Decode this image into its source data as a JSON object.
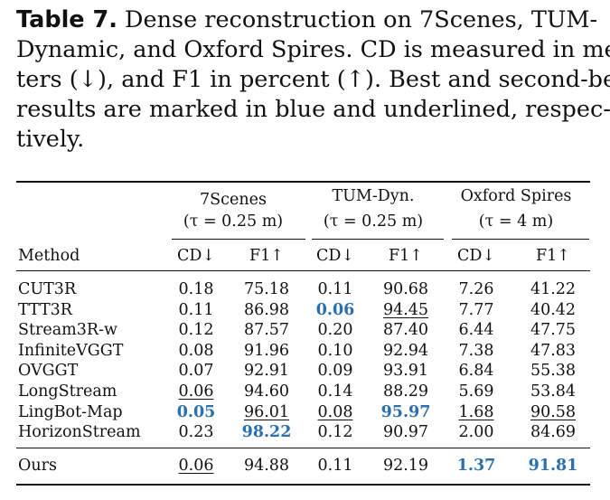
{
  "caption": {
    "label": "Table 7.",
    "lines": [
      " Dense reconstruction on 7Scenes, TUM-",
      "Dynamic, and Oxford Spires. CD is measured in me-",
      "ters (↓), and F1 in percent (↑). Best and second-best",
      "results are marked in blue and underlined, respec-",
      "tively."
    ]
  },
  "groups": [
    {
      "name": "7Scenes",
      "param": "(τ = 0.25 m)"
    },
    {
      "name": "TUM-Dyn.",
      "param": "(τ = 0.25 m)"
    },
    {
      "name": "Oxford Spires",
      "param": "(τ = 4 m)"
    }
  ],
  "columns": {
    "method": "Method",
    "cd": "CD↓",
    "f1": "F1↑"
  },
  "rows": [
    {
      "method": "CUT3R",
      "values": [
        "0.18",
        "75.18",
        "0.11",
        "90.68",
        "7.26",
        "41.22"
      ],
      "best": [],
      "second": []
    },
    {
      "method": "TTT3R",
      "values": [
        "0.11",
        "86.98",
        "0.06",
        "94.45",
        "7.77",
        "40.42"
      ],
      "best": [
        2
      ],
      "second": [
        3
      ]
    },
    {
      "method": "Stream3R-w",
      "values": [
        "0.12",
        "87.57",
        "0.20",
        "87.40",
        "6.44",
        "47.75"
      ],
      "best": [],
      "second": []
    },
    {
      "method": "InfiniteVGGT",
      "values": [
        "0.08",
        "91.96",
        "0.10",
        "92.94",
        "7.38",
        "47.83"
      ],
      "best": [],
      "second": []
    },
    {
      "method": "OVGGT",
      "values": [
        "0.07",
        "92.91",
        "0.09",
        "93.91",
        "6.84",
        "55.38"
      ],
      "best": [],
      "second": []
    },
    {
      "method": "LongStream",
      "values": [
        "0.06",
        "94.60",
        "0.14",
        "88.29",
        "5.69",
        "53.84"
      ],
      "best": [],
      "second": [
        0
      ]
    },
    {
      "method": "LingBot-Map",
      "values": [
        "0.05",
        "96.01",
        "0.08",
        "95.97",
        "1.68",
        "90.58"
      ],
      "best": [
        0,
        3
      ],
      "second": [
        1,
        2,
        4,
        5
      ]
    },
    {
      "method": "HorizonStream",
      "values": [
        "0.23",
        "98.22",
        "0.12",
        "90.97",
        "2.00",
        "84.69"
      ],
      "best": [
        1
      ],
      "second": []
    }
  ],
  "ours": {
    "method": "Ours",
    "values": [
      "0.06",
      "94.88",
      "0.11",
      "92.19",
      "1.37",
      "91.81"
    ],
    "best": [
      4,
      5
    ],
    "second": [
      0
    ]
  }
}
